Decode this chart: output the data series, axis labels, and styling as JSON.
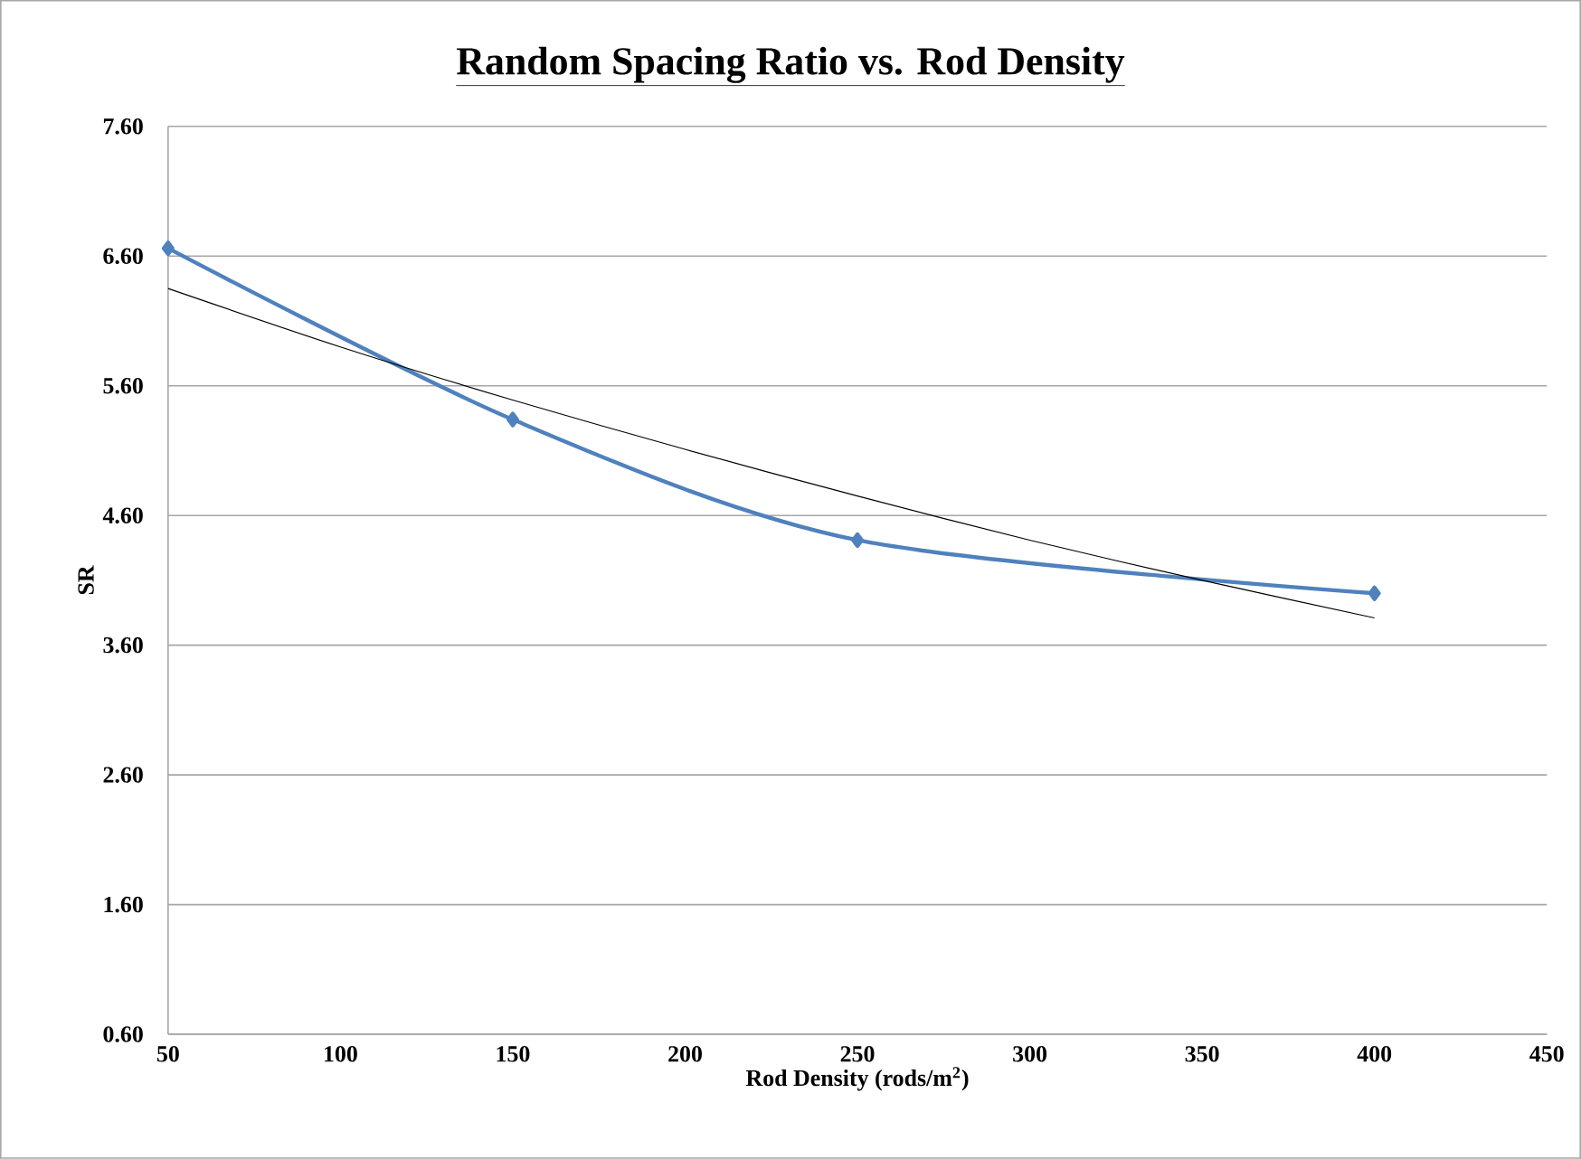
{
  "chart_data": {
    "type": "line",
    "title": "Random Spacing Ratio vs. Rod Density",
    "xlabel": "Rod Density (rods/m$^{2}$)",
    "ylabel": "SR",
    "x": [
      50,
      150,
      250,
      400
    ],
    "series": [
      {
        "color": "#4f81bd",
        "values": [
          6.66,
          5.34,
          4.41,
          4.0
        ],
        "marker": "diamond"
      },
      {
        "color": "#000000",
        "x": [
          50,
          100,
          150,
          200,
          250,
          300,
          350,
          400
        ],
        "values": [
          6.35,
          5.9,
          5.49,
          5.11,
          4.75,
          4.41,
          4.1,
          3.81
        ],
        "marker": "none"
      }
    ],
    "xlim": [
      50,
      450
    ],
    "xticks": [
      50,
      100,
      150,
      200,
      250,
      300,
      350,
      400,
      450
    ],
    "ylim": [
      0.6,
      7.6
    ],
    "yticks": [
      {
        "value": 0.6,
        "label": "0.60"
      },
      {
        "value": 1.6,
        "label": "1.60"
      },
      {
        "value": 2.6,
        "label": "2.60"
      },
      {
        "value": 3.6,
        "label": "3.60"
      },
      {
        "value": 4.6,
        "label": "4.60"
      },
      {
        "value": 5.6,
        "label": "5.60"
      },
      {
        "value": 6.6,
        "label": "6.60"
      },
      {
        "value": 7.6,
        "label": "7.60"
      }
    ],
    "grid": "y",
    "line_style": "solid"
  }
}
